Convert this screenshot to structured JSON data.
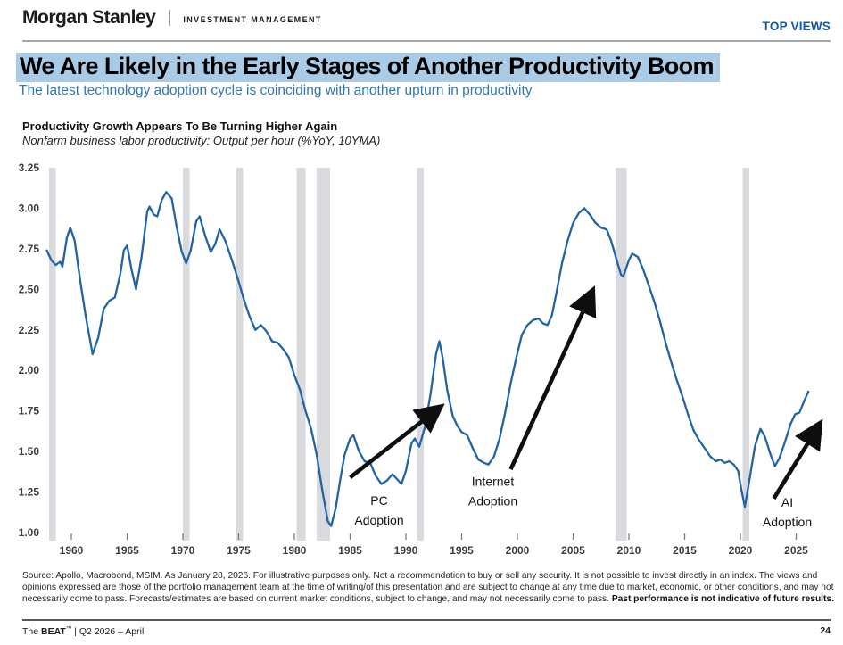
{
  "header": {
    "brand": "Morgan Stanley",
    "division": "INVESTMENT MANAGEMENT",
    "top_right_label": "TOP VIEWS"
  },
  "headline": {
    "title": "We Are Likely in the Early Stages of Another Productivity Boom",
    "subtitle": "The latest technology adoption cycle is coinciding with another upturn in productivity",
    "highlight_color": "#a9cbe5",
    "subtitle_color": "#2f78b6"
  },
  "chart_header": {
    "title": "Productivity Growth Appears To Be Turning Higher Again",
    "subtitle": "Nonfarm business labor productivity: Output per hour (%YoY, 10YMA)"
  },
  "chart_data": {
    "type": "line",
    "title": "Productivity Growth Appears To Be Turning Higher Again",
    "xlabel": "",
    "ylabel": "",
    "ylim": [
      1.0,
      3.25
    ],
    "xlim": [
      1957.5,
      2028.1
    ],
    "yticks": [
      1.0,
      1.25,
      1.5,
      1.75,
      2.0,
      2.25,
      2.5,
      2.75,
      3.0,
      3.25
    ],
    "xticks": [
      1960,
      1965,
      1970,
      1975,
      1980,
      1985,
      1990,
      1995,
      2000,
      2005,
      2010,
      2015,
      2020,
      2025
    ],
    "grid": false,
    "line_color": "#2164a5",
    "band_color": "#d9dade",
    "recession_bands": [
      [
        1958.0,
        1958.6
      ],
      [
        1970.0,
        1970.6
      ],
      [
        1974.8,
        1975.4
      ],
      [
        1980.2,
        1981.0
      ],
      [
        1982.0,
        1983.2
      ],
      [
        1991.0,
        1991.6
      ],
      [
        2008.8,
        2009.8
      ],
      [
        2020.2,
        2020.8
      ]
    ],
    "series": [
      {
        "name": "Nonfarm business labor productivity, %YoY 10-year moving average",
        "points": [
          [
            1957.8,
            2.74
          ],
          [
            1958.2,
            2.68
          ],
          [
            1958.6,
            2.65
          ],
          [
            1959.0,
            2.67
          ],
          [
            1959.2,
            2.64
          ],
          [
            1959.6,
            2.82
          ],
          [
            1959.9,
            2.88
          ],
          [
            1960.3,
            2.8
          ],
          [
            1960.8,
            2.55
          ],
          [
            1961.3,
            2.33
          ],
          [
            1961.9,
            2.1
          ],
          [
            1962.4,
            2.2
          ],
          [
            1962.9,
            2.38
          ],
          [
            1963.4,
            2.43
          ],
          [
            1963.9,
            2.45
          ],
          [
            1964.4,
            2.6
          ],
          [
            1964.7,
            2.74
          ],
          [
            1965.0,
            2.77
          ],
          [
            1965.4,
            2.62
          ],
          [
            1965.8,
            2.5
          ],
          [
            1966.3,
            2.7
          ],
          [
            1966.8,
            2.98
          ],
          [
            1967.0,
            3.01
          ],
          [
            1967.4,
            2.96
          ],
          [
            1967.7,
            2.95
          ],
          [
            1968.1,
            3.05
          ],
          [
            1968.5,
            3.1
          ],
          [
            1969.0,
            3.06
          ],
          [
            1969.4,
            2.9
          ],
          [
            1969.9,
            2.73
          ],
          [
            1970.3,
            2.66
          ],
          [
            1970.7,
            2.74
          ],
          [
            1971.2,
            2.92
          ],
          [
            1971.5,
            2.95
          ],
          [
            1972.0,
            2.83
          ],
          [
            1972.5,
            2.73
          ],
          [
            1972.9,
            2.78
          ],
          [
            1973.3,
            2.87
          ],
          [
            1973.8,
            2.8
          ],
          [
            1974.4,
            2.68
          ],
          [
            1974.9,
            2.57
          ],
          [
            1975.5,
            2.43
          ],
          [
            1976.0,
            2.33
          ],
          [
            1976.5,
            2.25
          ],
          [
            1977.0,
            2.28
          ],
          [
            1977.5,
            2.24
          ],
          [
            1978.0,
            2.18
          ],
          [
            1978.5,
            2.17
          ],
          [
            1979.0,
            2.13
          ],
          [
            1979.5,
            2.08
          ],
          [
            1980.0,
            1.97
          ],
          [
            1980.5,
            1.88
          ],
          [
            1981.0,
            1.75
          ],
          [
            1981.5,
            1.64
          ],
          [
            1982.0,
            1.48
          ],
          [
            1982.5,
            1.26
          ],
          [
            1983.0,
            1.07
          ],
          [
            1983.3,
            1.04
          ],
          [
            1983.7,
            1.15
          ],
          [
            1984.1,
            1.32
          ],
          [
            1984.5,
            1.48
          ],
          [
            1985.0,
            1.58
          ],
          [
            1985.3,
            1.6
          ],
          [
            1985.8,
            1.5
          ],
          [
            1986.3,
            1.44
          ],
          [
            1986.8,
            1.43
          ],
          [
            1987.3,
            1.35
          ],
          [
            1987.8,
            1.3
          ],
          [
            1988.3,
            1.32
          ],
          [
            1988.8,
            1.36
          ],
          [
            1989.2,
            1.33
          ],
          [
            1989.6,
            1.3
          ],
          [
            1990.0,
            1.38
          ],
          [
            1990.5,
            1.55
          ],
          [
            1990.8,
            1.58
          ],
          [
            1991.2,
            1.53
          ],
          [
            1991.7,
            1.65
          ],
          [
            1992.2,
            1.85
          ],
          [
            1992.7,
            2.1
          ],
          [
            1993.0,
            2.18
          ],
          [
            1993.3,
            2.08
          ],
          [
            1993.7,
            1.88
          ],
          [
            1994.2,
            1.72
          ],
          [
            1994.6,
            1.66
          ],
          [
            1995.0,
            1.62
          ],
          [
            1995.5,
            1.6
          ],
          [
            1996.0,
            1.52
          ],
          [
            1996.5,
            1.45
          ],
          [
            1997.0,
            1.43
          ],
          [
            1997.4,
            1.42
          ],
          [
            1997.9,
            1.47
          ],
          [
            1998.4,
            1.58
          ],
          [
            1998.9,
            1.74
          ],
          [
            1999.4,
            1.92
          ],
          [
            1999.9,
            2.08
          ],
          [
            2000.4,
            2.22
          ],
          [
            2000.9,
            2.28
          ],
          [
            2001.4,
            2.31
          ],
          [
            2001.9,
            2.32
          ],
          [
            2002.3,
            2.29
          ],
          [
            2002.7,
            2.28
          ],
          [
            2003.1,
            2.34
          ],
          [
            2003.5,
            2.48
          ],
          [
            2004.0,
            2.66
          ],
          [
            2004.5,
            2.8
          ],
          [
            2005.0,
            2.91
          ],
          [
            2005.5,
            2.97
          ],
          [
            2006.0,
            3.0
          ],
          [
            2006.5,
            2.96
          ],
          [
            2007.0,
            2.91
          ],
          [
            2007.5,
            2.88
          ],
          [
            2008.0,
            2.87
          ],
          [
            2008.4,
            2.8
          ],
          [
            2008.9,
            2.68
          ],
          [
            2009.3,
            2.59
          ],
          [
            2009.5,
            2.58
          ],
          [
            2010.0,
            2.68
          ],
          [
            2010.3,
            2.72
          ],
          [
            2010.8,
            2.7
          ],
          [
            2011.3,
            2.62
          ],
          [
            2011.8,
            2.52
          ],
          [
            2012.3,
            2.42
          ],
          [
            2012.8,
            2.3
          ],
          [
            2013.3,
            2.17
          ],
          [
            2013.8,
            2.05
          ],
          [
            2014.3,
            1.94
          ],
          [
            2014.8,
            1.84
          ],
          [
            2015.3,
            1.73
          ],
          [
            2015.8,
            1.63
          ],
          [
            2016.3,
            1.57
          ],
          [
            2016.8,
            1.52
          ],
          [
            2017.3,
            1.47
          ],
          [
            2017.8,
            1.44
          ],
          [
            2018.2,
            1.45
          ],
          [
            2018.6,
            1.43
          ],
          [
            2019.0,
            1.44
          ],
          [
            2019.4,
            1.42
          ],
          [
            2019.8,
            1.38
          ],
          [
            2020.1,
            1.26
          ],
          [
            2020.4,
            1.16
          ],
          [
            2020.8,
            1.32
          ],
          [
            2021.3,
            1.53
          ],
          [
            2021.8,
            1.64
          ],
          [
            2022.2,
            1.59
          ],
          [
            2022.7,
            1.48
          ],
          [
            2023.1,
            1.41
          ],
          [
            2023.5,
            1.46
          ],
          [
            2024.0,
            1.56
          ],
          [
            2024.5,
            1.67
          ],
          [
            2024.9,
            1.73
          ],
          [
            2025.3,
            1.74
          ],
          [
            2025.7,
            1.81
          ],
          [
            2026.1,
            1.87
          ]
        ]
      }
    ],
    "annotations": [
      {
        "lines": [
          "PC",
          "Adoption"
        ],
        "x": 1987.6,
        "y": 1.17,
        "arrow": {
          "x1": 1985.0,
          "y1": 1.34,
          "x2": 1993.2,
          "y2": 1.78
        }
      },
      {
        "lines": [
          "Internet",
          "Adoption"
        ],
        "x": 1997.8,
        "y": 1.29,
        "arrow": {
          "x1": 1999.4,
          "y1": 1.39,
          "x2": 2006.8,
          "y2": 2.5
        }
      },
      {
        "lines": [
          "AI",
          "Adoption"
        ],
        "x": 2024.2,
        "y": 1.16,
        "arrow": {
          "x1": 2023.0,
          "y1": 1.21,
          "x2": 2027.2,
          "y2": 1.68
        }
      }
    ],
    "legend_position": "none"
  },
  "source": {
    "text": "Source: Apollo, Macrobond, MSIM. As January 28, 2026. For illustrative purposes only. Not a recommendation to buy or sell any security. It is not possible to invest directly in an index. The views and opinions expressed are those of the portfolio management team at the time of writing/of this presentation and are subject to change at any time due to market, economic, or other conditions, and may not necessarily come to pass.  Forecasts/estimates are based on current market conditions, subject to change, and may not necessarily come to pass. ",
    "bold_text": "Past performance is not indicative of future results."
  },
  "footer": {
    "left_prefix": "The ",
    "left_brand": "BEAT",
    "left_tm": "™",
    "left_rest": " | Q2 2026 – April",
    "page_number": "24"
  }
}
